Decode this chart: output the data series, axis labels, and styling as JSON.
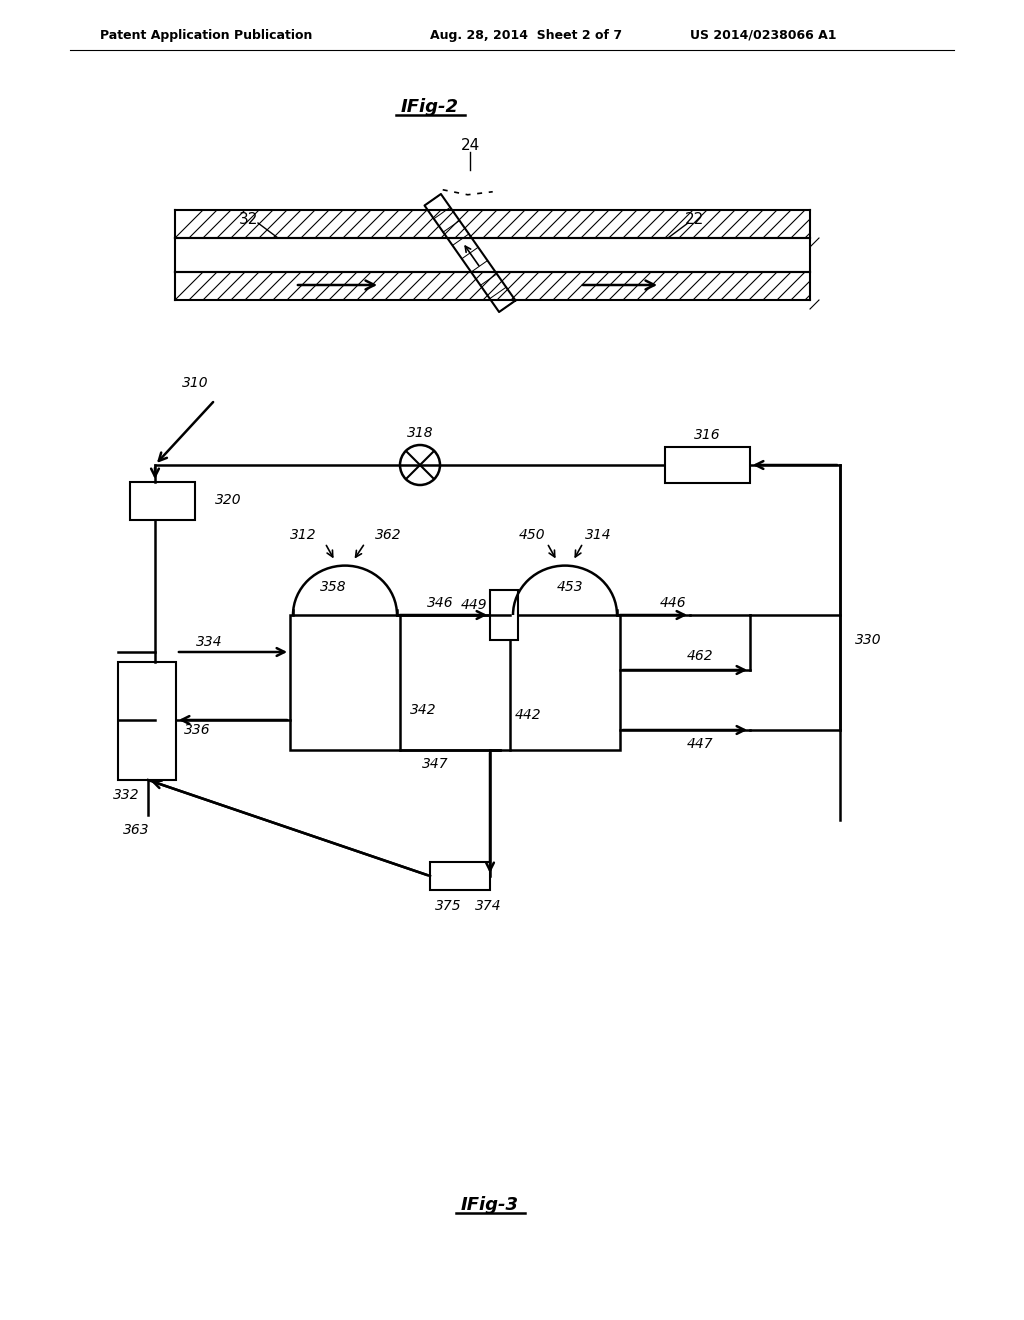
{
  "bg_color": "#ffffff",
  "header_left": "Patent Application Publication",
  "header_mid": "Aug. 28, 2014  Sheet 2 of 7",
  "header_right": "US 2014/0238066 A1",
  "fig2_title": "IFig-2",
  "fig3_title": "IFig-3"
}
